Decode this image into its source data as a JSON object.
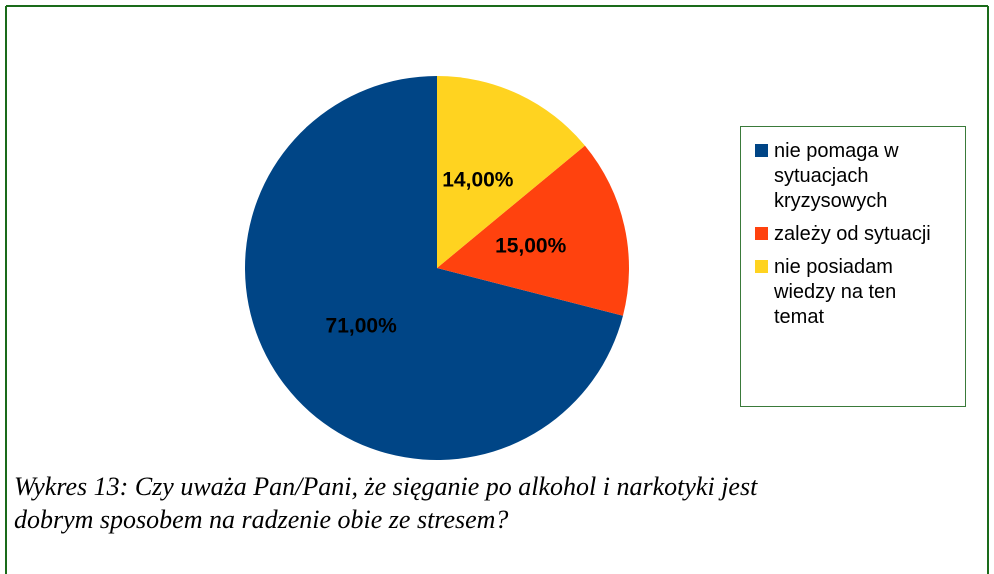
{
  "chart_data": {
    "type": "pie",
    "categories": [
      "nie pomaga w sytuacjach kryzysowych",
      "zależy od sytuacji",
      "nie posiadam wiedzy na ten temat"
    ],
    "values": [
      71,
      15,
      14
    ],
    "value_labels": [
      "71,00%",
      "15,00%",
      "14,00%"
    ],
    "colors": [
      "#004586",
      "#ff420e",
      "#ffd320"
    ],
    "caption": "Wykres 13: Czy uważa Pan/Pani, że sięganie po alkohol i narkotyki jest dobrym sposobem na radzenie obie ze stresem?"
  }
}
